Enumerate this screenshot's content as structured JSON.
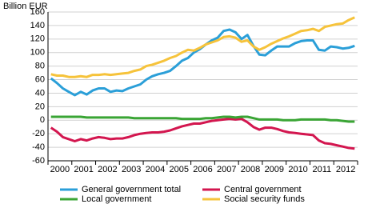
{
  "chart_data": {
    "type": "line",
    "y_label": "Billion EUR",
    "categories": [
      null,
      "2000",
      null,
      null,
      null,
      "2001",
      null,
      null,
      null,
      "2002",
      null,
      null,
      null,
      "2003",
      null,
      null,
      null,
      "2004",
      null,
      null,
      null,
      "2005",
      null,
      null,
      null,
      "2006",
      null,
      null,
      null,
      "2007",
      null,
      null,
      null,
      "2008",
      null,
      null,
      null,
      "2009",
      null,
      null,
      null,
      "2010",
      null,
      null,
      null,
      "2011",
      null,
      null,
      null,
      "2012",
      null,
      null
    ],
    "series": [
      {
        "name": "General government total",
        "color": "#2b9fd8",
        "values": [
          62,
          55,
          47,
          42,
          37,
          42,
          38,
          44,
          47,
          47,
          42,
          44,
          43,
          47,
          50,
          53,
          60,
          65,
          68,
          70,
          73,
          80,
          88,
          92,
          100,
          105,
          112,
          118,
          122,
          132,
          134,
          130,
          120,
          126,
          110,
          97,
          96,
          103,
          109,
          109,
          109,
          114,
          117,
          118,
          118,
          104,
          103,
          109,
          108,
          106,
          107,
          110
        ]
      },
      {
        "name": "Central government",
        "color": "#d3164f",
        "values": [
          -11,
          -17,
          -25,
          -28,
          -31,
          -28,
          -30,
          -27,
          -25,
          -26,
          -28,
          -27,
          -27,
          -25,
          -22,
          -20,
          -19,
          -18,
          -18,
          -17,
          -15,
          -12,
          -9,
          -7,
          -5,
          -5,
          -3,
          -1,
          0,
          1,
          2,
          1,
          2,
          -3,
          -10,
          -14,
          -11,
          -11,
          -13,
          -16,
          -18,
          -19,
          -20,
          -21,
          -22,
          -30,
          -34,
          -35,
          -37,
          -39,
          -41,
          -42
        ]
      },
      {
        "name": "Local government",
        "color": "#3aa535",
        "values": [
          5,
          5,
          5,
          5,
          5,
          5,
          4,
          4,
          4,
          4,
          4,
          4,
          4,
          4,
          3,
          3,
          3,
          3,
          3,
          3,
          3,
          3,
          2,
          2,
          2,
          2,
          3,
          3,
          4,
          5,
          5,
          4,
          5,
          5,
          3,
          1,
          1,
          1,
          1,
          0,
          0,
          0,
          1,
          1,
          1,
          1,
          1,
          0,
          0,
          -1,
          -2,
          -2
        ]
      },
      {
        "name": "Social security funds",
        "color": "#f6c33b",
        "values": [
          68,
          66,
          66,
          64,
          64,
          65,
          64,
          67,
          67,
          68,
          67,
          68,
          69,
          70,
          73,
          75,
          80,
          82,
          85,
          88,
          92,
          95,
          100,
          104,
          103,
          107,
          112,
          115,
          118,
          123,
          124,
          122,
          116,
          118,
          109,
          104,
          108,
          113,
          117,
          121,
          124,
          128,
          132,
          133,
          135,
          132,
          138,
          140,
          142,
          143,
          148,
          152
        ]
      }
    ],
    "ylim": [
      -60,
      160
    ],
    "yticks": [
      -60,
      -40,
      -20,
      0,
      20,
      40,
      60,
      80,
      100,
      120,
      140,
      160
    ],
    "grid": true
  }
}
